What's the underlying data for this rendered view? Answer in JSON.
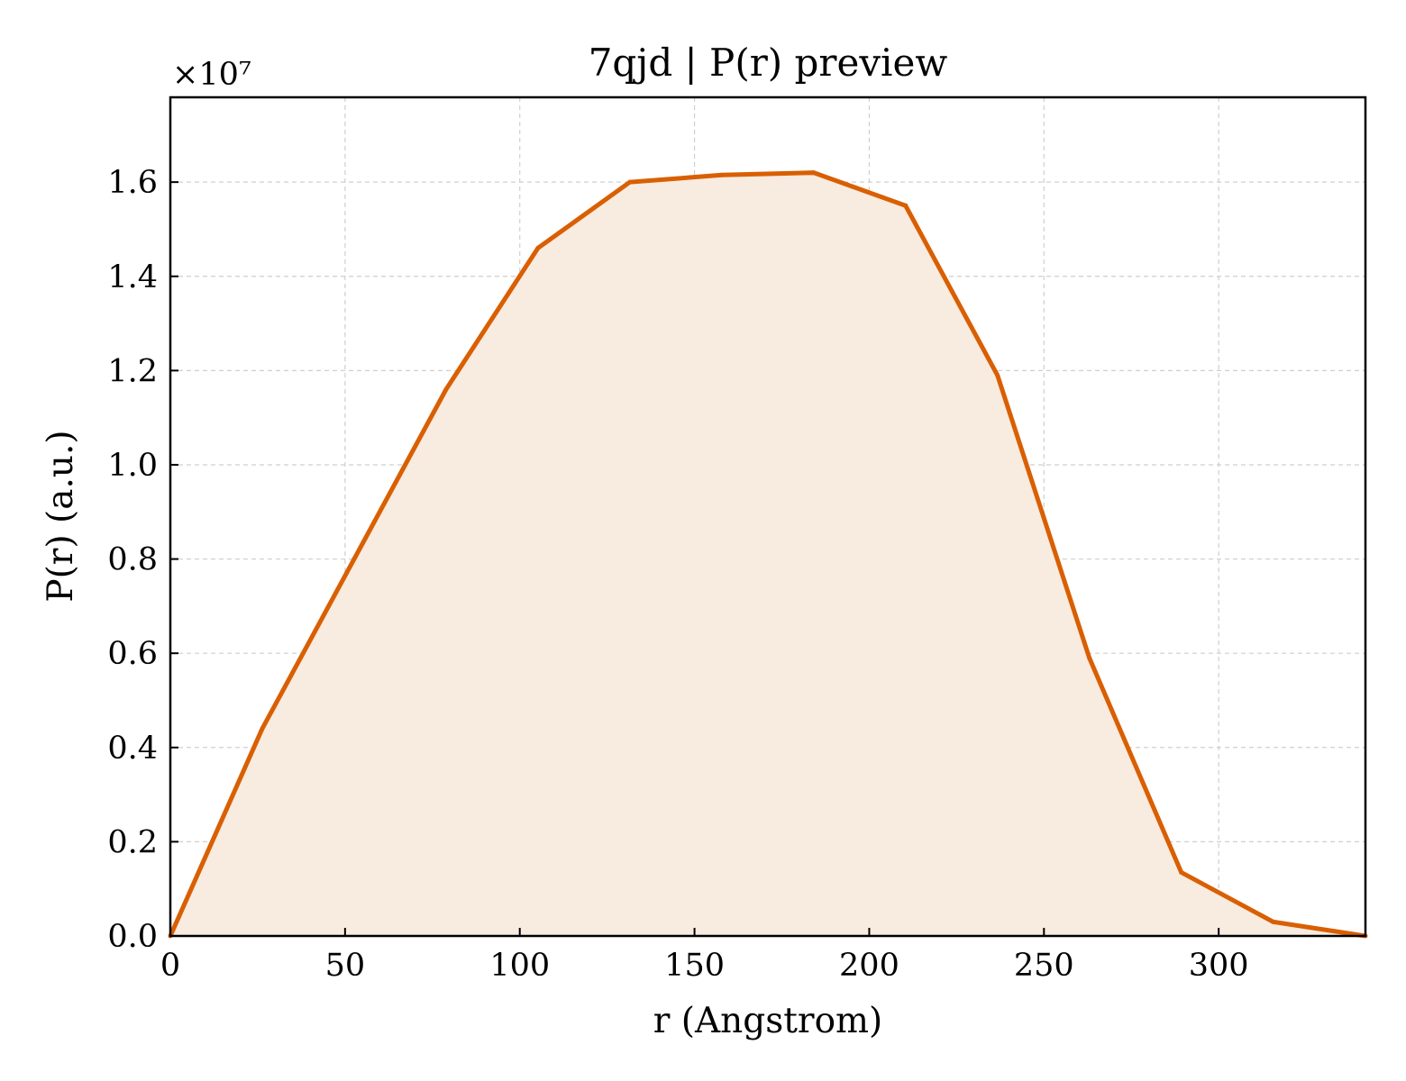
{
  "chart_data": {
    "type": "area",
    "title": "7qjd | P(r) preview",
    "xlabel": "r (Angstrom)",
    "ylabel": "P(r) (a.u.)",
    "y_multiplier_label": "×10⁷",
    "xlim": [
      0,
      342
    ],
    "ylim": [
      0,
      1.78
    ],
    "xticks": [
      0,
      50,
      100,
      150,
      200,
      250,
      300
    ],
    "xtick_labels": [
      "0",
      "50",
      "100",
      "150",
      "200",
      "250",
      "300"
    ],
    "yticks": [
      0.0,
      0.2,
      0.4,
      0.6,
      0.8,
      1.0,
      1.2,
      1.4,
      1.6
    ],
    "ytick_labels": [
      "0.0",
      "0.2",
      "0.4",
      "0.6",
      "0.8",
      "1.0",
      "1.2",
      "1.4",
      "1.6"
    ],
    "grid": true,
    "series": [
      {
        "x": [
          0,
          26.3,
          52.6,
          78.9,
          105.2,
          131.5,
          157.8,
          184.1,
          210.4,
          236.7,
          263.0,
          289.3,
          315.6,
          342
        ],
        "y": [
          0.0,
          0.44,
          0.8,
          1.16,
          1.46,
          1.6,
          1.615,
          1.62,
          1.55,
          1.19,
          0.59,
          0.135,
          0.03,
          0.0
        ],
        "color": "#d95f02",
        "fill_color": "#f8ebe0"
      }
    ]
  }
}
